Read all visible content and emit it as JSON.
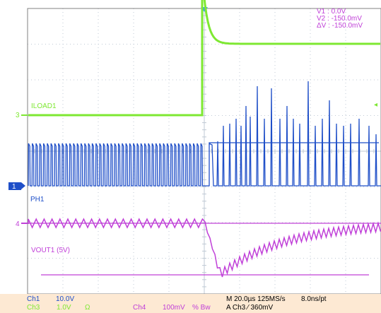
{
  "colors": {
    "grid": "#bfc9d4",
    "frame": "#808080",
    "trigger_marker": "#3aa8d8",
    "ch_iload": "#7ee832",
    "ch_ph": "#1f4fc8",
    "ch_vout": "#c040d8",
    "status_bg": "#fde9d3",
    "status_text_ch1": "#1f4fc8",
    "status_text_ch3": "#7ee832",
    "status_text_ch4": "#c040d8",
    "cursor_text": "#c040d8"
  },
  "cursor_readout": {
    "v1": "V1  :  0.0V",
    "v2": "V2  :  -150.0mV",
    "dv": "ΔV  :  -150.0mV"
  },
  "channels": {
    "iload": {
      "label": "ILOAD1",
      "marker": "3"
    },
    "ph": {
      "label": "PH1",
      "marker": "1"
    },
    "vout": {
      "label": "VOUT1 (5V)",
      "marker": "4"
    }
  },
  "status_bar": {
    "ch1_name": "Ch1",
    "ch1_scale": "10.0V",
    "ch3_name": "Ch3",
    "ch3_scale": "1.0V",
    "ch3_coupling": "Ω",
    "ch4_name": "Ch4",
    "ch4_scale": "100mV",
    "ch4_bw": "% Bw",
    "horizontal": "M 20.0µs 125MS/s",
    "sample_interval": "8.0ns/pt",
    "trigger": "A  Ch3  ⁄  360mV"
  }
}
